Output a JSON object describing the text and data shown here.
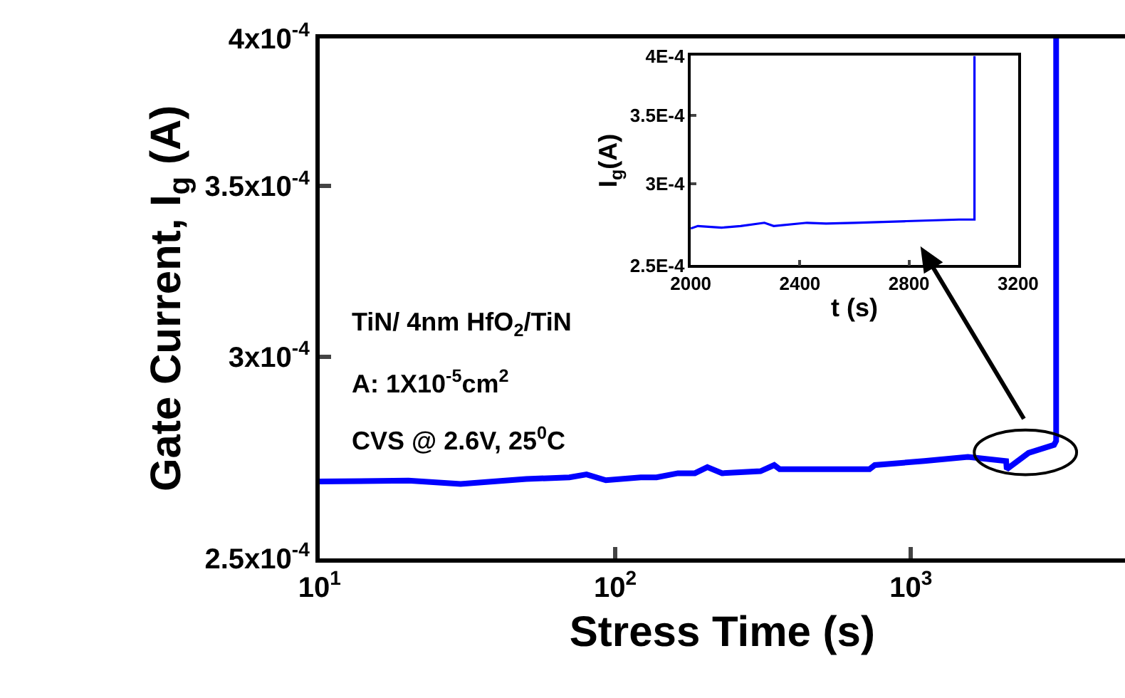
{
  "chart_data": [
    {
      "type": "line",
      "xlabel": "Stress Time (s)",
      "ylabel": "Gate Current, I$_{g}$ (A)",
      "log": "xy",
      "marker": "none",
      "line_style": "solid",
      "xlim": [
        10,
        5300
      ],
      "ylim": [
        0.00025,
        0.0004
      ],
      "xticks": [
        {
          "value": 10,
          "label": "10$^{1}$"
        },
        {
          "value": 100,
          "label": "10$^{2}$"
        },
        {
          "value": 1000,
          "label": "10$^{3}$"
        }
      ],
      "yticks": [
        {
          "value": 0.00025,
          "label": "2.5x10$^{-4}$"
        },
        {
          "value": 0.0003,
          "label": "3x10$^{-4}$"
        },
        {
          "value": 0.00035,
          "label": "3.5x10$^{-4}$"
        },
        {
          "value": 0.0004,
          "label": "4x10$^{-4}$"
        }
      ],
      "annotations": [
        "TiN/ 4nm HfO$_{2}$/TiN",
        "A: 1X10$^{-5}$cm$^{2}$",
        "CVS @ 2.6V, 25$^{0}$C"
      ],
      "series": [
        {
          "color": "#0000ff",
          "x": [
            10,
            20,
            30,
            50,
            70,
            80,
            93,
            122,
            138,
            163,
            186,
            205,
            230,
            310,
            345,
            360,
            495,
            725,
            755,
            1110,
            1560,
            2100,
            2110,
            2500,
            3050,
            3100,
            3100
          ],
          "values": [
            0.000268,
            0.0002682,
            0.0002674,
            0.0002686,
            0.000269,
            0.0002697,
            0.0002683,
            0.000269,
            0.000269,
            0.00027,
            0.00027,
            0.0002715,
            0.00027,
            0.0002705,
            0.000272,
            0.000271,
            0.000271,
            0.000271,
            0.000272,
            0.000273,
            0.000274,
            0.000273,
            0.000271,
            0.000275,
            0.000277,
            0.000278,
            0.0004
          ]
        }
      ]
    },
    {
      "type": "line",
      "xlabel": "t (s)",
      "ylabel": "I$_{g}$(A)",
      "log": "y",
      "marker": "none",
      "line_style": "solid",
      "xlim": [
        2000,
        3200
      ],
      "ylim": [
        0.00025,
        0.0004
      ],
      "xticks": [
        2000,
        2400,
        2800,
        3200
      ],
      "yticks": [
        {
          "value": 0.00025,
          "label": "2.5E-4"
        },
        {
          "value": 0.0003,
          "label": "3E-4"
        },
        {
          "value": 0.00035,
          "label": "3.5E-4"
        },
        {
          "value": 0.0004,
          "label": "4E-4"
        }
      ],
      "series": [
        {
          "color": "#0000ff",
          "x": [
            2000,
            2026,
            2113,
            2183,
            2270,
            2304,
            2426,
            2496,
            2600,
            2791,
            2983,
            3040,
            3040
          ],
          "values": [
            0.0002715,
            0.000273,
            0.000272,
            0.000273,
            0.000275,
            0.000273,
            0.000275,
            0.0002745,
            0.000275,
            0.000276,
            0.000277,
            0.000277,
            0.0004
          ]
        }
      ]
    }
  ]
}
